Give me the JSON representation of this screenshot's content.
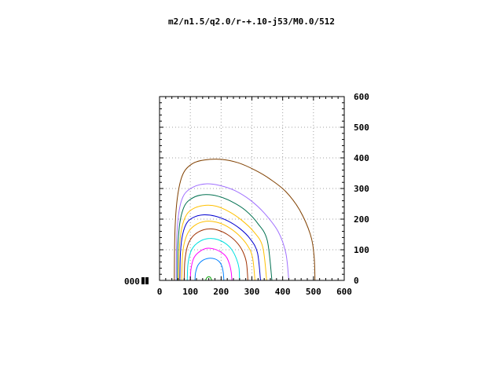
{
  "chart_data": {
    "type": "line",
    "title": "m2/n1.5/q2.0/r-+.10-j53/M0.0/512",
    "corner_label": "000",
    "x": {
      "lim": [
        0,
        600
      ],
      "ticks": [
        0,
        100,
        200,
        300,
        400,
        500,
        600
      ]
    },
    "y": {
      "lim": [
        0,
        600
      ],
      "ticks": [
        0,
        100,
        200,
        300,
        400,
        500,
        600
      ],
      "tick_side": "right"
    },
    "grid": true,
    "colors": [
      "#00a000",
      "#0080ff",
      "#ff00ff",
      "#00e0e0",
      "#a03000",
      "#ffc000",
      "#0000d0",
      "#007050",
      "#a070ff",
      "#804000"
    ],
    "series": [
      {
        "color": "#00a000",
        "points": [
          [
            150,
            0
          ],
          [
            151,
            4
          ],
          [
            155,
            10
          ],
          [
            160,
            12
          ],
          [
            165,
            10
          ],
          [
            168,
            4
          ],
          [
            169,
            0
          ]
        ]
      },
      {
        "color": "#0080ff",
        "points": [
          [
            115,
            0
          ],
          [
            117,
            25
          ],
          [
            125,
            50
          ],
          [
            140,
            65
          ],
          [
            160,
            72
          ],
          [
            180,
            70
          ],
          [
            195,
            60
          ],
          [
            203,
            45
          ],
          [
            207,
            25
          ],
          [
            209,
            0
          ]
        ]
      },
      {
        "color": "#ff00ff",
        "points": [
          [
            100,
            0
          ],
          [
            102,
            35
          ],
          [
            110,
            70
          ],
          [
            125,
            90
          ],
          [
            150,
            104
          ],
          [
            175,
            103
          ],
          [
            200,
            92
          ],
          [
            218,
            75
          ],
          [
            228,
            50
          ],
          [
            233,
            25
          ],
          [
            235,
            0
          ]
        ]
      },
      {
        "color": "#00e0e0",
        "points": [
          [
            90,
            0
          ],
          [
            92,
            50
          ],
          [
            100,
            90
          ],
          [
            115,
            115
          ],
          [
            140,
            132
          ],
          [
            165,
            137
          ],
          [
            190,
            133
          ],
          [
            215,
            120
          ],
          [
            235,
            100
          ],
          [
            250,
            70
          ],
          [
            258,
            40
          ],
          [
            260,
            0
          ]
        ]
      },
      {
        "color": "#a03000",
        "points": [
          [
            80,
            0
          ],
          [
            82,
            60
          ],
          [
            90,
            110
          ],
          [
            105,
            140
          ],
          [
            130,
            160
          ],
          [
            160,
            168
          ],
          [
            190,
            164
          ],
          [
            220,
            150
          ],
          [
            250,
            125
          ],
          [
            270,
            95
          ],
          [
            282,
            60
          ],
          [
            287,
            0
          ]
        ]
      },
      {
        "color": "#ffc000",
        "points": [
          [
            72,
            0
          ],
          [
            74,
            70
          ],
          [
            80,
            120
          ],
          [
            95,
            160
          ],
          [
            120,
            183
          ],
          [
            150,
            193
          ],
          [
            185,
            190
          ],
          [
            220,
            176
          ],
          [
            255,
            150
          ],
          [
            285,
            115
          ],
          [
            302,
            75
          ],
          [
            310,
            0
          ]
        ]
      },
      {
        "color": "#0000d0",
        "points": [
          [
            66,
            0
          ],
          [
            68,
            90
          ],
          [
            75,
            150
          ],
          [
            90,
            190
          ],
          [
            115,
            208
          ],
          [
            145,
            214
          ],
          [
            180,
            210
          ],
          [
            220,
            195
          ],
          [
            260,
            170
          ],
          [
            295,
            135
          ],
          [
            318,
            90
          ],
          [
            328,
            0
          ]
        ]
      },
      {
        "color": "#ffc000",
        "points": [
          [
            62,
            0
          ],
          [
            64,
            100
          ],
          [
            72,
            170
          ],
          [
            88,
            215
          ],
          [
            115,
            237
          ],
          [
            150,
            245
          ],
          [
            185,
            242
          ],
          [
            225,
            225
          ],
          [
            265,
            198
          ],
          [
            305,
            160
          ],
          [
            335,
            110
          ],
          [
            348,
            0
          ]
        ]
      },
      {
        "color": "#007050",
        "points": [
          [
            58,
            0
          ],
          [
            60,
            120
          ],
          [
            68,
            200
          ],
          [
            85,
            250
          ],
          [
            115,
            273
          ],
          [
            150,
            280
          ],
          [
            190,
            275
          ],
          [
            235,
            257
          ],
          [
            280,
            228
          ],
          [
            320,
            185
          ],
          [
            350,
            130
          ],
          [
            365,
            0
          ]
        ]
      },
      {
        "color": "#a070ff",
        "points": [
          [
            54,
            0
          ],
          [
            56,
            140
          ],
          [
            64,
            230
          ],
          [
            80,
            280
          ],
          [
            110,
            305
          ],
          [
            150,
            315
          ],
          [
            195,
            310
          ],
          [
            245,
            293
          ],
          [
            295,
            262
          ],
          [
            340,
            220
          ],
          [
            385,
            160
          ],
          [
            410,
            90
          ],
          [
            420,
            0
          ]
        ]
      },
      {
        "color": "#804000",
        "points": [
          [
            48,
            0
          ],
          [
            50,
            160
          ],
          [
            58,
            270
          ],
          [
            75,
            345
          ],
          [
            105,
            380
          ],
          [
            145,
            393
          ],
          [
            200,
            395
          ],
          [
            255,
            384
          ],
          [
            310,
            360
          ],
          [
            360,
            330
          ],
          [
            410,
            290
          ],
          [
            455,
            230
          ],
          [
            490,
            150
          ],
          [
            502,
            80
          ],
          [
            505,
            0
          ]
        ]
      }
    ]
  }
}
